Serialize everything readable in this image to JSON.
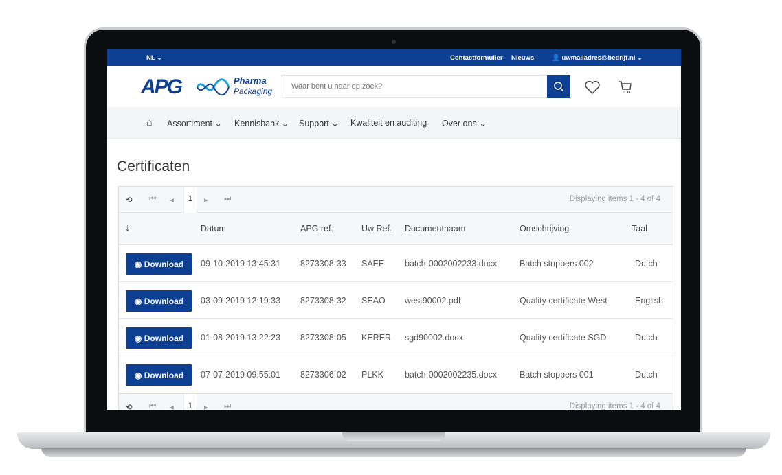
{
  "topbar": {
    "language": "NL",
    "contact": "Contactformulier",
    "news": "Nieuws",
    "user": "uwmailadres@bedrijf.nl"
  },
  "logo": {
    "text": "APG",
    "brand_line1": "Pharma",
    "brand_line2": "Packaging"
  },
  "search": {
    "placeholder": "Waar bent u naar op zoek?"
  },
  "nav": {
    "items": [
      "Assortiment",
      "Kennisbank",
      "Support",
      "Kwaliteit en auditing",
      "Over ons"
    ]
  },
  "page": {
    "title": "Certificaten"
  },
  "pager": {
    "page": "1",
    "info": "Displaying items 1 - 4 of 4"
  },
  "table": {
    "columns": [
      "Datum",
      "APG ref.",
      "Uw Ref.",
      "Documentnaam",
      "Omschrijving",
      "Taal"
    ],
    "download_label": "Download",
    "rows": [
      [
        "09-10-2019 13:45:31",
        "8273308-33",
        "SAEE",
        "batch-0002002233.docx",
        "Batch stoppers 002",
        "Dutch"
      ],
      [
        "03-09-2019 12:19:33",
        "8273308-32",
        "SEAO",
        "west90002.pdf",
        "Quality certificate West",
        "English"
      ],
      [
        "01-08-2019 13:22:23",
        "8273308-05",
        "KERER",
        "sgd90002.docx",
        "Quality certificate SGD",
        "Dutch"
      ],
      [
        "07-07-2019 09:55:01",
        "8273306-02",
        "PLKK",
        "batch-0002002235.docx",
        "Batch stoppers 001",
        "Dutch"
      ]
    ]
  },
  "colors": {
    "brand": "#0d3f93",
    "nav_bg": "#f4f5f7"
  }
}
